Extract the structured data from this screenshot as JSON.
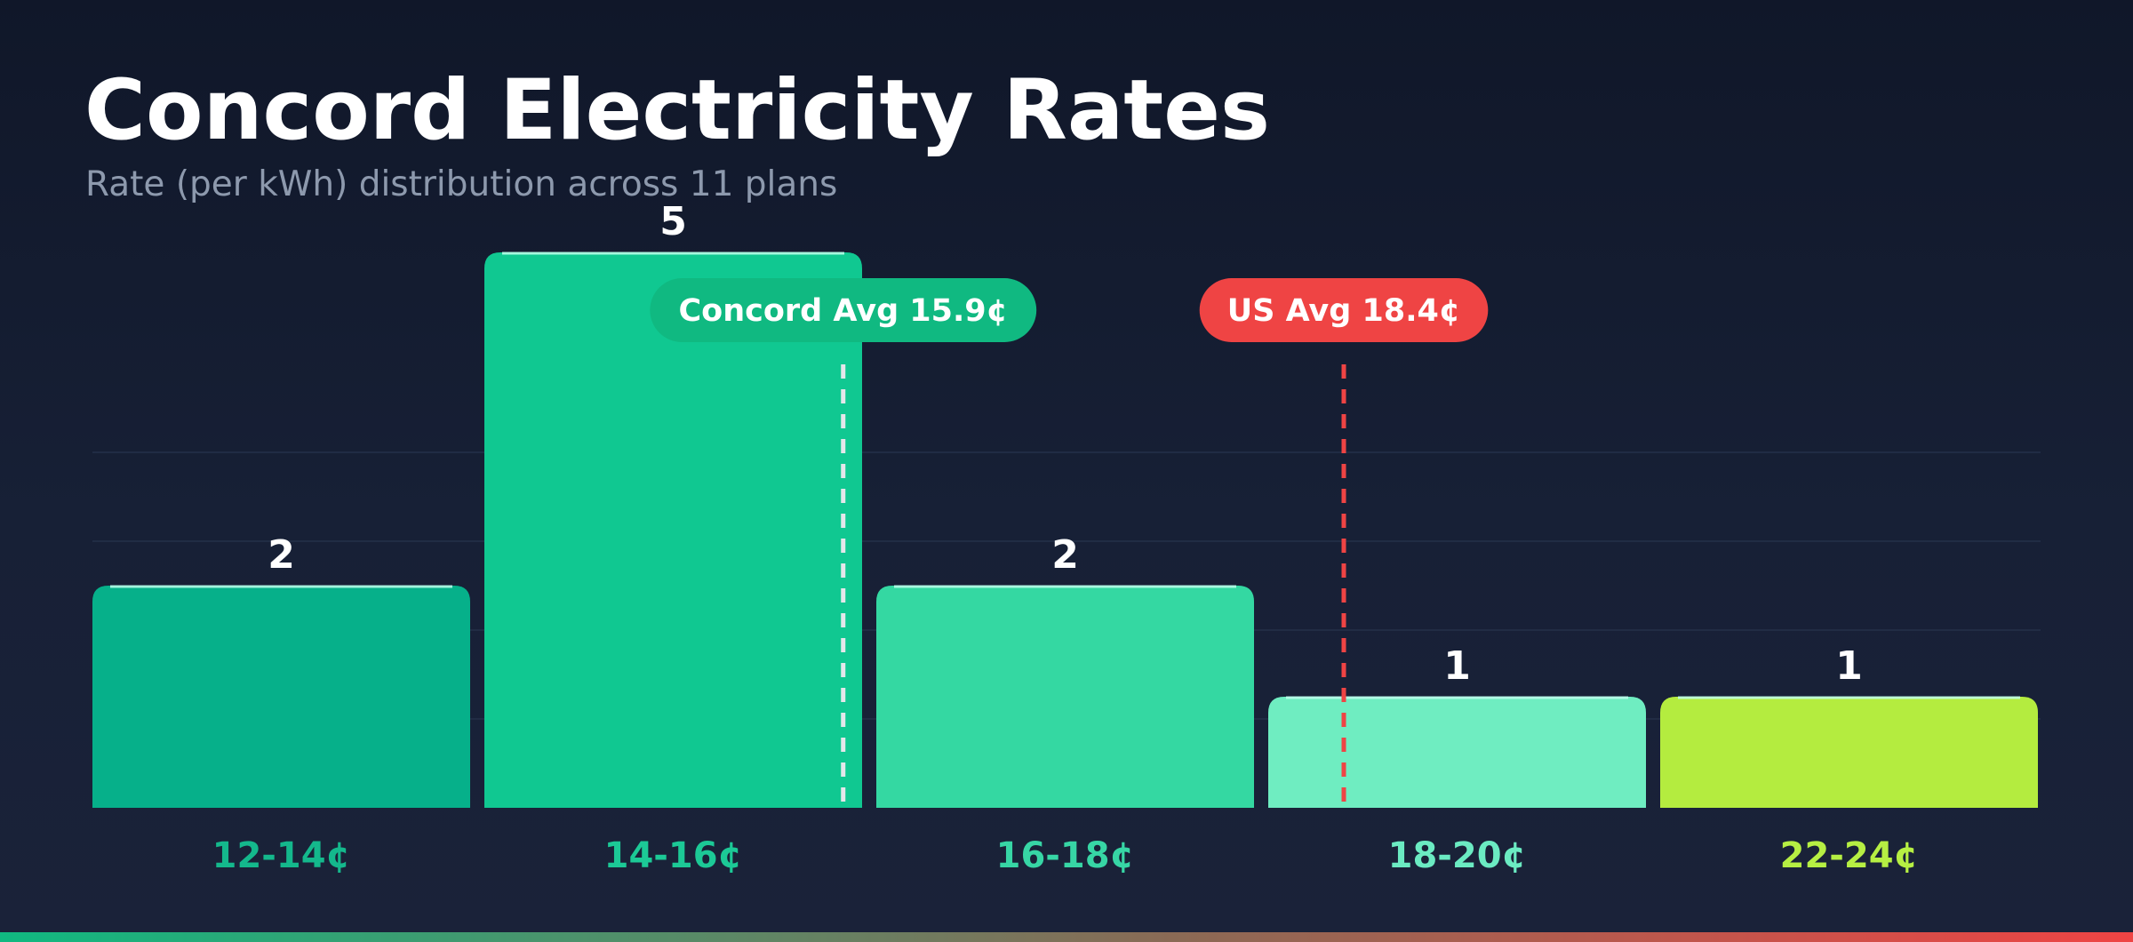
{
  "title": "Concord Electricity Rates",
  "subtitle": "Rate (per kWh) distribution across 11 plans",
  "chart_data": {
    "type": "bar",
    "title": "Concord Electricity Rates",
    "subtitle": "Rate (per kWh) distribution across 11 plans",
    "categories": [
      "12-14¢",
      "14-16¢",
      "16-18¢",
      "18-20¢",
      "22-24¢"
    ],
    "values": [
      2,
      5,
      2,
      1,
      1
    ],
    "bar_colors": [
      "#06b08a",
      "#10c891",
      "#34d8a2",
      "#6fedc1",
      "#b4ec3f"
    ],
    "label_colors": [
      "#14b88c",
      "#1cc996",
      "#37d6a5",
      "#6bebc2",
      "#b6ef43"
    ],
    "xlabel": "",
    "ylabel": "",
    "ylim": [
      0,
      5
    ],
    "grid": true,
    "reference_lines": [
      {
        "label": "Concord Avg 15.9¢",
        "value": 15.9,
        "color": "#10b981",
        "line_color": "#e5e7eb"
      },
      {
        "label": "US Avg 18.4¢",
        "value": 18.4,
        "color": "#ef4444",
        "line_color": "#ef4444"
      }
    ],
    "bin_edges": [
      [
        12,
        14
      ],
      [
        14,
        16
      ],
      [
        16,
        18
      ],
      [
        18,
        20
      ],
      [
        22,
        24
      ]
    ]
  }
}
